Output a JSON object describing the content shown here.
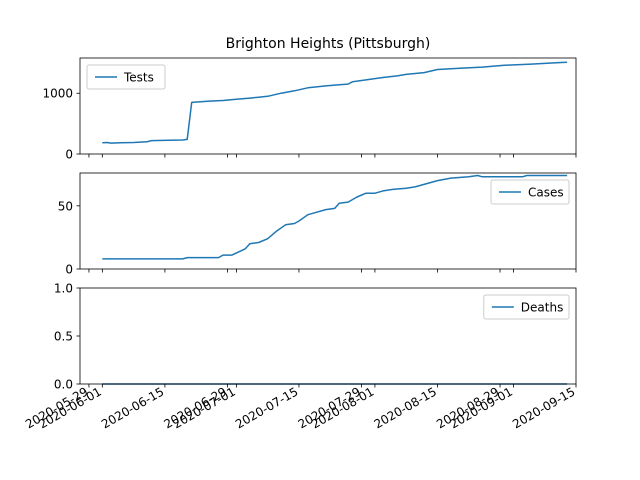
{
  "chart_data": {
    "title": "Brighton Heights (Pittsburgh)",
    "type": "line",
    "shared_x_axis": true,
    "xlim": [
      "2020-05-27",
      "2020-09-15"
    ],
    "x_tick_labels": [
      "2020-05-29",
      "2020-06-01",
      "2020-06-15",
      "2020-06-29",
      "2020-07-01",
      "2020-07-15",
      "2020-07-29",
      "2020-08-01",
      "2020-08-15",
      "2020-08-29",
      "2020-09-01",
      "2020-09-15"
    ],
    "panels": [
      {
        "series_name": "Tests",
        "legend_position": "upper-left",
        "ylim": [
          0,
          1580
        ],
        "y_ticks": [
          0,
          1000
        ],
        "y_tick_labels": [
          "0",
          "1000"
        ],
        "points": [
          [
            "2020-06-01",
            185
          ],
          [
            "2020-06-02",
            190
          ],
          [
            "2020-06-03",
            180
          ],
          [
            "2020-06-05",
            185
          ],
          [
            "2020-06-08",
            190
          ],
          [
            "2020-06-11",
            200
          ],
          [
            "2020-06-12",
            220
          ],
          [
            "2020-06-16",
            225
          ],
          [
            "2020-06-19",
            230
          ],
          [
            "2020-06-20",
            240
          ],
          [
            "2020-06-21",
            850
          ],
          [
            "2020-06-23",
            860
          ],
          [
            "2020-06-25",
            870
          ],
          [
            "2020-06-28",
            880
          ],
          [
            "2020-07-01",
            900
          ],
          [
            "2020-07-04",
            920
          ],
          [
            "2020-07-06",
            935
          ],
          [
            "2020-07-08",
            950
          ],
          [
            "2020-07-11",
            1000
          ],
          [
            "2020-07-14",
            1040
          ],
          [
            "2020-07-17",
            1090
          ],
          [
            "2020-07-21",
            1120
          ],
          [
            "2020-07-24",
            1140
          ],
          [
            "2020-07-26",
            1150
          ],
          [
            "2020-07-27",
            1190
          ],
          [
            "2020-07-31",
            1230
          ],
          [
            "2020-08-03",
            1260
          ],
          [
            "2020-08-06",
            1285
          ],
          [
            "2020-08-08",
            1310
          ],
          [
            "2020-08-12",
            1340
          ],
          [
            "2020-08-15",
            1390
          ],
          [
            "2020-08-20",
            1410
          ],
          [
            "2020-08-25",
            1430
          ],
          [
            "2020-08-30",
            1460
          ],
          [
            "2020-09-05",
            1480
          ],
          [
            "2020-09-10",
            1500
          ],
          [
            "2020-09-13",
            1510
          ]
        ]
      },
      {
        "series_name": "Cases",
        "legend_position": "upper-right",
        "ylim": [
          0,
          76
        ],
        "y_ticks": [
          0,
          50
        ],
        "y_tick_labels": [
          "0",
          "50"
        ],
        "points": [
          [
            "2020-06-01",
            8
          ],
          [
            "2020-06-19",
            8
          ],
          [
            "2020-06-20",
            9
          ],
          [
            "2020-06-27",
            9
          ],
          [
            "2020-06-28",
            11
          ],
          [
            "2020-06-30",
            11
          ],
          [
            "2020-07-03",
            16
          ],
          [
            "2020-07-04",
            20
          ],
          [
            "2020-07-06",
            21
          ],
          [
            "2020-07-08",
            24
          ],
          [
            "2020-07-10",
            30
          ],
          [
            "2020-07-12",
            35
          ],
          [
            "2020-07-14",
            36
          ],
          [
            "2020-07-15",
            38
          ],
          [
            "2020-07-17",
            43
          ],
          [
            "2020-07-19",
            45
          ],
          [
            "2020-07-21",
            47
          ],
          [
            "2020-07-23",
            48
          ],
          [
            "2020-07-24",
            52
          ],
          [
            "2020-07-26",
            53
          ],
          [
            "2020-07-28",
            57
          ],
          [
            "2020-07-30",
            60
          ],
          [
            "2020-08-01",
            60
          ],
          [
            "2020-08-03",
            62
          ],
          [
            "2020-08-05",
            63
          ],
          [
            "2020-08-08",
            64
          ],
          [
            "2020-08-10",
            65
          ],
          [
            "2020-08-13",
            68
          ],
          [
            "2020-08-15",
            70
          ],
          [
            "2020-08-18",
            72
          ],
          [
            "2020-08-22",
            73
          ],
          [
            "2020-08-24",
            74
          ],
          [
            "2020-08-25",
            73
          ],
          [
            "2020-09-03",
            73
          ],
          [
            "2020-09-04",
            74
          ],
          [
            "2020-09-13",
            74
          ]
        ]
      },
      {
        "series_name": "Deaths",
        "legend_position": "upper-right",
        "ylim": [
          0,
          1.0
        ],
        "y_ticks": [
          0,
          0.5,
          1.0
        ],
        "y_tick_labels": [
          "0.0",
          "0.5",
          "1.0"
        ],
        "points": [
          [
            "2020-06-01",
            0
          ],
          [
            "2020-09-13",
            0
          ]
        ]
      }
    ]
  }
}
